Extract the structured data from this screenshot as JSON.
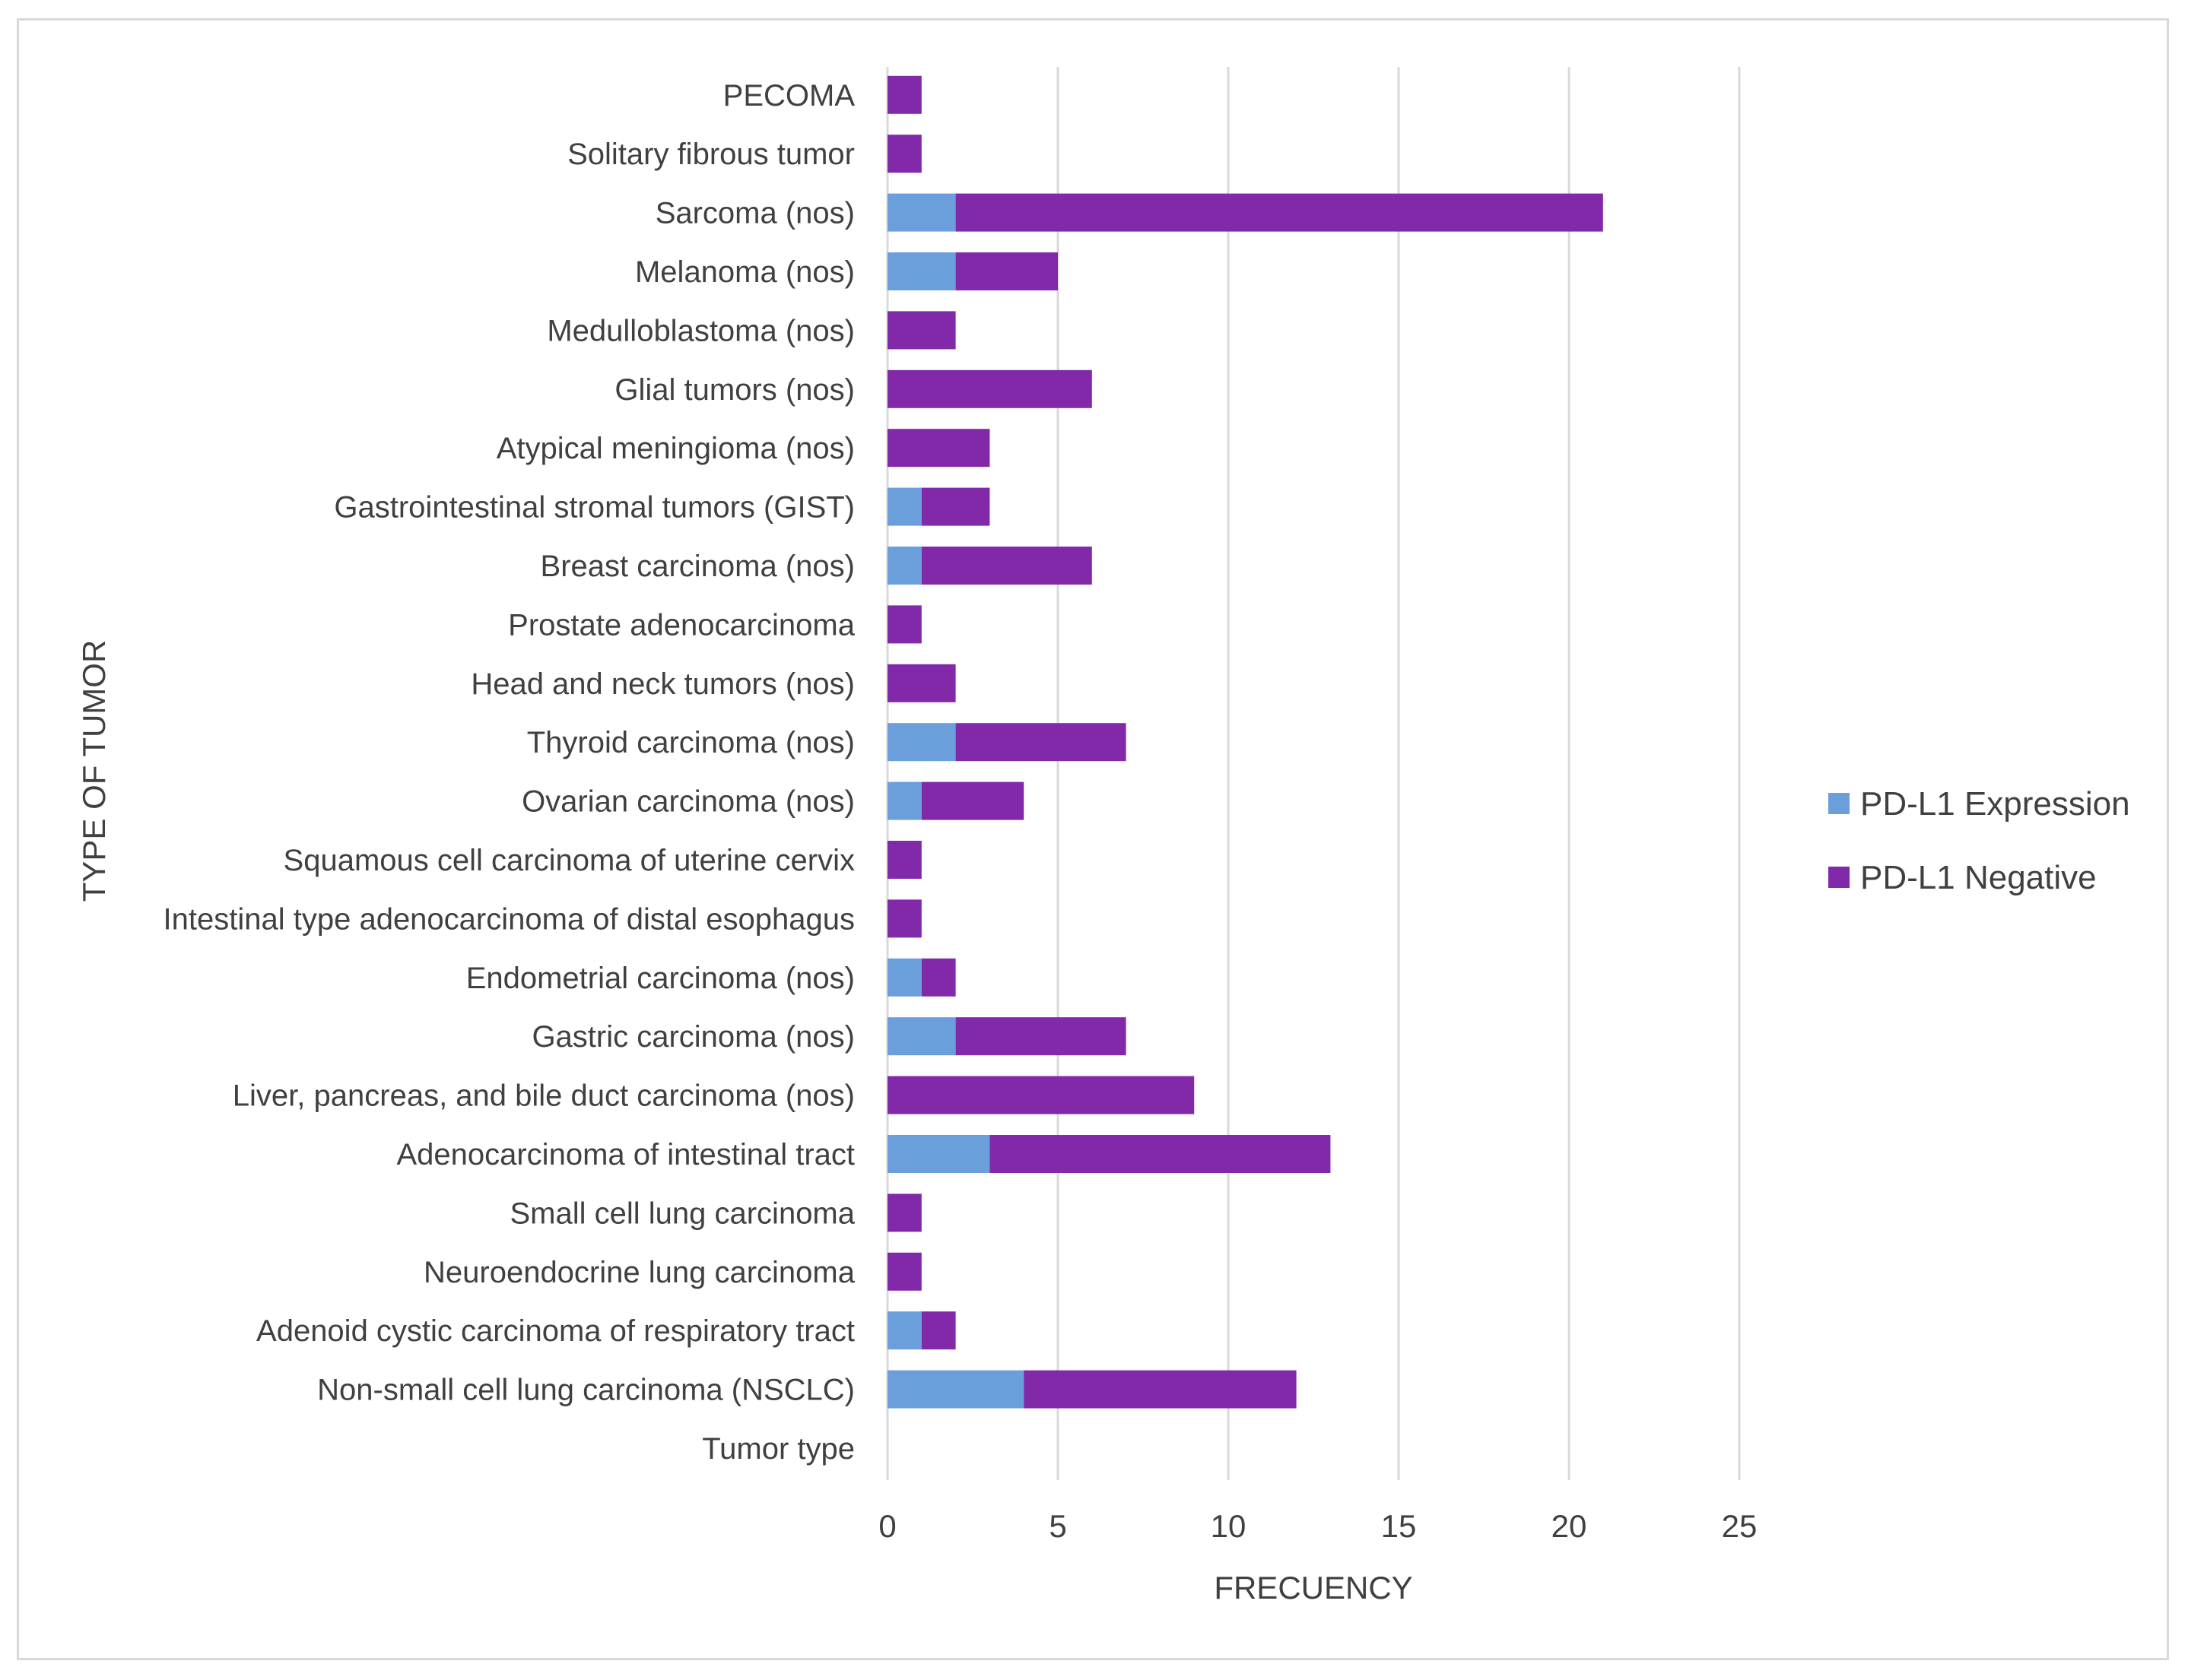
{
  "chart_data": {
    "type": "bar",
    "orientation": "horizontal",
    "stacked": true,
    "title": "",
    "xlabel": "FRECUENCY",
    "ylabel": "TYPE OF TUMOR",
    "xlim": [
      0,
      25
    ],
    "xticks": [
      0,
      5,
      10,
      15,
      20,
      25
    ],
    "grid": "vertical",
    "legend_position": "right",
    "categories": [
      "Tumor type",
      "Non-small cell lung carcinoma (NSCLC)",
      "Adenoid cystic carcinoma of respiratory tract",
      "Neuroendocrine lung carcinoma",
      "Small cell lung carcinoma",
      "Adenocarcinoma of intestinal tract",
      "Liver, pancreas, and bile duct carcinoma (nos)",
      "Gastric carcinoma (nos)",
      "Endometrial carcinoma (nos)",
      "Intestinal type adenocarcinoma of distal esophagus",
      "Squamous cell carcinoma of uterine cervix",
      "Ovarian carcinoma (nos)",
      "Thyroid carcinoma (nos)",
      "Head and neck tumors (nos)",
      "Prostate adenocarcinoma",
      "Breast carcinoma (nos)",
      "Gastrointestinal stromal tumors (GIST)",
      "Atypical meningioma (nos)",
      "Glial tumors (nos)",
      "Medulloblastoma (nos)",
      "Melanoma (nos)",
      "Sarcoma (nos)",
      "Solitary fibrous tumor",
      "PECOMA"
    ],
    "series": [
      {
        "name": "PD-L1 Expression",
        "color": "#6a9fdb",
        "values": [
          0,
          4,
          1,
          0,
          0,
          3,
          0,
          2,
          1,
          0,
          0,
          1,
          2,
          0,
          0,
          1,
          1,
          0,
          0,
          0,
          2,
          2,
          0,
          0
        ]
      },
      {
        "name": "PD-L1 Negative",
        "color": "#8129a8",
        "values": [
          0,
          8,
          1,
          1,
          1,
          10,
          9,
          5,
          1,
          1,
          1,
          3,
          5,
          2,
          1,
          5,
          2,
          3,
          6,
          2,
          3,
          19,
          1,
          1
        ]
      }
    ]
  }
}
